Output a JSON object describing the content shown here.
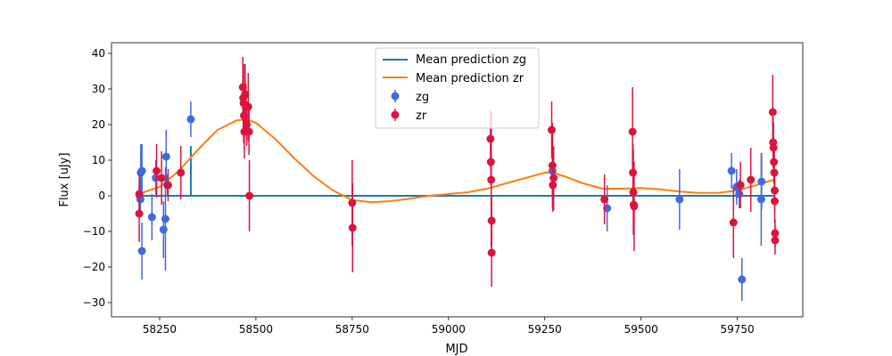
{
  "chart_data": {
    "type": "scatter",
    "title": "",
    "xlabel": "MJD",
    "ylabel": "Flux [uJy]",
    "xlim": [
      58125,
      59920
    ],
    "ylim": [
      -34,
      43
    ],
    "xticks": [
      58250,
      58500,
      58750,
      59000,
      59250,
      59500,
      59750
    ],
    "yticks": [
      -30,
      -20,
      -10,
      0,
      10,
      20,
      30,
      40
    ],
    "grid": false,
    "legend_position": "top-center",
    "legend": [
      "Mean prediction zg",
      "Mean prediction zr",
      "zg",
      "zr"
    ],
    "colors": {
      "zg_line": "#1f77b4",
      "zr_line": "#ff7f0e",
      "zg_points": "#4169e1",
      "zr_points": "#dc143c"
    },
    "lines": [
      {
        "name": "Mean prediction zg",
        "x": [
          58195,
          59845
        ],
        "y": [
          0,
          0
        ],
        "spikes": [
          {
            "x": 58331,
            "y": 14
          }
        ]
      },
      {
        "name": "Mean prediction zr",
        "x": [
          58195,
          58250,
          58300,
          58350,
          58400,
          58450,
          58475,
          58500,
          58550,
          58600,
          58650,
          58700,
          58750,
          58800,
          58850,
          58900,
          58950,
          59000,
          59050,
          59100,
          59150,
          59200,
          59250,
          59270,
          59300,
          59350,
          59400,
          59450,
          59500,
          59550,
          59600,
          59650,
          59700,
          59750,
          59800,
          59845
        ],
        "y": [
          0.5,
          2.5,
          7,
          13,
          18.5,
          21.2,
          21.5,
          20.5,
          16,
          10.5,
          5.5,
          1.5,
          -1.2,
          -1.8,
          -1.5,
          -0.8,
          0,
          0.5,
          1,
          2,
          3.5,
          5,
          6.5,
          6.6,
          5.5,
          3.5,
          2,
          2,
          2.2,
          1.8,
          1.2,
          0.8,
          0.8,
          1.5,
          3,
          4.5
        ]
      }
    ],
    "series": [
      {
        "name": "zg",
        "points": [
          {
            "x": 58198,
            "y": 0,
            "err": 5
          },
          {
            "x": 58200,
            "y": -1,
            "err": 5
          },
          {
            "x": 58201,
            "y": 6.5,
            "err": 8
          },
          {
            "x": 58204,
            "y": 7,
            "err": 7.5
          },
          {
            "x": 58204,
            "y": -15.5,
            "err": 8
          },
          {
            "x": 58230,
            "y": -6,
            "err": 6.5
          },
          {
            "x": 58240,
            "y": 5,
            "err": 5
          },
          {
            "x": 58260,
            "y": -9.5,
            "err": 8
          },
          {
            "x": 58265,
            "y": -6.5,
            "err": 14.5
          },
          {
            "x": 58267,
            "y": 11,
            "err": 7.5
          },
          {
            "x": 58270,
            "y": 3,
            "err": 3
          },
          {
            "x": 58331,
            "y": 21.5,
            "err": 5
          },
          {
            "x": 59270,
            "y": 7,
            "err": 8
          },
          {
            "x": 59412,
            "y": -3.5,
            "err": 6.5
          },
          {
            "x": 59600,
            "y": -1,
            "err": 8.5
          },
          {
            "x": 59735,
            "y": 7,
            "err": 5
          },
          {
            "x": 59748,
            "y": 2.5,
            "err": 5
          },
          {
            "x": 59755,
            "y": 0.5,
            "err": 4
          },
          {
            "x": 59762,
            "y": -23.5,
            "err": 6
          },
          {
            "x": 59812,
            "y": -1,
            "err": 13
          },
          {
            "x": 59813,
            "y": 4,
            "err": 8
          }
        ]
      },
      {
        "name": "zr",
        "points": [
          {
            "x": 58197,
            "y": 0.5,
            "err": 5.5
          },
          {
            "x": 58197,
            "y": -5,
            "err": 8
          },
          {
            "x": 58242,
            "y": 7,
            "err": 7.5
          },
          {
            "x": 58255,
            "y": 5,
            "err": 7.5
          },
          {
            "x": 58272,
            "y": 3,
            "err": 4.5
          },
          {
            "x": 58305,
            "y": 6.5,
            "err": 7.5
          },
          {
            "x": 58466,
            "y": 30.5,
            "err": 8.5
          },
          {
            "x": 58467,
            "y": 27.5,
            "err": 9
          },
          {
            "x": 58468,
            "y": 26,
            "err": 11
          },
          {
            "x": 58469,
            "y": 22.5,
            "err": 8
          },
          {
            "x": 58470,
            "y": 18,
            "err": 7.5
          },
          {
            "x": 58472,
            "y": 28.5,
            "err": 8.5
          },
          {
            "x": 58474,
            "y": 25.5,
            "err": 6
          },
          {
            "x": 58476,
            "y": 20,
            "err": 6
          },
          {
            "x": 58480,
            "y": 25,
            "err": 9.5
          },
          {
            "x": 58482,
            "y": 18,
            "err": 6.5
          },
          {
            "x": 58483,
            "y": 0,
            "err": 10
          },
          {
            "x": 58750,
            "y": -2,
            "err": 12
          },
          {
            "x": 58751,
            "y": -9,
            "err": 12.5
          },
          {
            "x": 59109,
            "y": 16,
            "err": 8
          },
          {
            "x": 59110,
            "y": 9.5,
            "err": 6.5
          },
          {
            "x": 59111,
            "y": 4.5,
            "err": 19
          },
          {
            "x": 59112,
            "y": -7,
            "err": 7
          },
          {
            "x": 59112,
            "y": -16,
            "err": 9.5
          },
          {
            "x": 59268,
            "y": 18.5,
            "err": 8
          },
          {
            "x": 59270,
            "y": 8.5,
            "err": 12
          },
          {
            "x": 59271,
            "y": 3,
            "err": 7.5
          },
          {
            "x": 59273,
            "y": 5,
            "err": 9
          },
          {
            "x": 59405,
            "y": -1,
            "err": 7
          },
          {
            "x": 59478,
            "y": 18,
            "err": 12.5
          },
          {
            "x": 59479,
            "y": 6.5,
            "err": 8
          },
          {
            "x": 59480,
            "y": 1,
            "err": 12
          },
          {
            "x": 59481,
            "y": -2.5,
            "err": 7.5
          },
          {
            "x": 59482,
            "y": -3,
            "err": 12.5
          },
          {
            "x": 59740,
            "y": -7.5,
            "err": 10
          },
          {
            "x": 59758,
            "y": 3,
            "err": 6.5
          },
          {
            "x": 59785,
            "y": 4.5,
            "err": 9
          },
          {
            "x": 59842,
            "y": 23.5,
            "err": 10.5
          },
          {
            "x": 59843,
            "y": 15,
            "err": 7
          },
          {
            "x": 59844,
            "y": 13.5,
            "err": 7
          },
          {
            "x": 59845,
            "y": 9.5,
            "err": 6
          },
          {
            "x": 59846,
            "y": 6.5,
            "err": 6
          },
          {
            "x": 59847,
            "y": 1.5,
            "err": 6
          },
          {
            "x": 59847,
            "y": -1.5,
            "err": 6
          },
          {
            "x": 59848,
            "y": -10.5,
            "err": 4
          },
          {
            "x": 59848,
            "y": -12.5,
            "err": 4
          }
        ]
      }
    ]
  }
}
